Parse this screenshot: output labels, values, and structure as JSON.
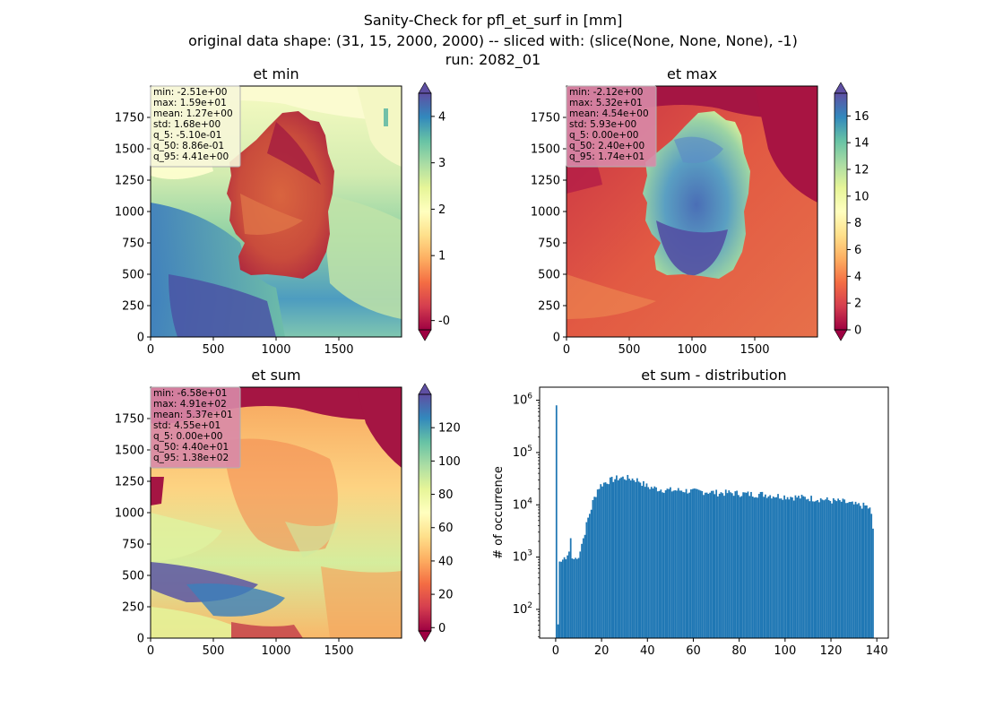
{
  "suptitle": {
    "line1": "Sanity-Check for pfl_et_surf in [mm]",
    "line2": "original data shape: (31, 15, 2000, 2000) -- sliced with: (slice(None, None, None), -1)",
    "line3": "run: 2082_01"
  },
  "panels": [
    {
      "title": "et min",
      "stats": [
        "min: -2.51e+00",
        "max: 1.59e+01",
        "mean: 1.27e+00",
        "std: 1.68e+00",
        "q_5: -5.10e-01",
        "q_50: 8.86e-01",
        "q_95: 4.41e+00"
      ],
      "stats_bg": "#f6f6d8",
      "xticks": [
        "0",
        "500",
        "1000",
        "1500"
      ],
      "yticks": [
        "0",
        "250",
        "500",
        "750",
        "1000",
        "1250",
        "1500",
        "1750"
      ],
      "colorbar": {
        "min": -0.6,
        "max": 4.5,
        "ticks": [
          "-0",
          "1",
          "2",
          "3",
          "4"
        ],
        "tick_values": [
          -0.4,
          1,
          2,
          3,
          4
        ]
      }
    },
    {
      "title": "et max",
      "stats": [
        "min: -2.12e+00",
        "max: 5.32e+01",
        "mean: 4.54e+00",
        "std: 5.93e+00",
        "q_5: 0.00e+00",
        "q_50: 2.40e+00",
        "q_95: 1.74e+01"
      ],
      "stats_bg": "#d889a8",
      "xticks": [
        "0",
        "500",
        "1000",
        "1500"
      ],
      "yticks": [
        "0",
        "250",
        "500",
        "750",
        "1000",
        "1250",
        "1500",
        "1750"
      ],
      "colorbar": {
        "min": 0,
        "max": 17.7,
        "ticks": [
          "0",
          "2",
          "4",
          "6",
          "8",
          "10",
          "12",
          "14",
          "16"
        ],
        "tick_values": [
          0,
          2,
          4,
          6,
          8,
          10,
          12,
          14,
          16
        ]
      }
    },
    {
      "title": "et sum",
      "stats": [
        "min: -6.58e+01",
        "max: 4.91e+02",
        "mean: 5.37e+01",
        "std: 4.55e+01",
        "q_5: 0.00e+00",
        "q_50: 4.40e+01",
        "q_95: 1.38e+02"
      ],
      "stats_bg": "#d889a8",
      "xticks": [
        "0",
        "500",
        "1000",
        "1500"
      ],
      "yticks": [
        "0",
        "250",
        "500",
        "750",
        "1000",
        "1250",
        "1500",
        "1750"
      ],
      "colorbar": {
        "min": -2,
        "max": 140,
        "ticks": [
          "0",
          "20",
          "40",
          "60",
          "80",
          "100",
          "120"
        ],
        "tick_values": [
          0,
          20,
          40,
          60,
          80,
          100,
          120
        ]
      }
    }
  ],
  "chart_data": {
    "type": "bar",
    "title": "et sum - distribution",
    "xlabel": "",
    "ylabel": "# of occurrence",
    "xlim": [
      -7,
      145
    ],
    "ylim_log10": [
      1.45,
      6.25
    ],
    "log_y": true,
    "x_ticks": [
      0,
      20,
      40,
      60,
      80,
      100,
      120,
      140
    ],
    "y_ticks_exp": [
      2,
      3,
      4,
      5,
      6
    ],
    "bar_color": "#1f77b4",
    "bin_width": 0.69,
    "profile_x": [
      0,
      0.35,
      0.7,
      1.05,
      1.4,
      1.75,
      2.1,
      2.8,
      3.5,
      4.2,
      4.9,
      5.6,
      6.3,
      7,
      8,
      9,
      10,
      11,
      12,
      13,
      14,
      15,
      16,
      17,
      18,
      19,
      20,
      22,
      24,
      26,
      28,
      30,
      32,
      34,
      36,
      38,
      40,
      45,
      50,
      55,
      60,
      65,
      70,
      75,
      80,
      85,
      90,
      95,
      100,
      105,
      110,
      115,
      120,
      125,
      130,
      135,
      137,
      138
    ],
    "profile_y": [
      800000,
      150,
      50,
      1300,
      800,
      1000,
      800,
      900,
      1000,
      900,
      1100,
      1300,
      2500,
      800,
      1000,
      900,
      1200,
      1800,
      2500,
      4000,
      6000,
      8000,
      12000,
      15000,
      20000,
      23000,
      25000,
      28000,
      30000,
      32000,
      33000,
      33000,
      32000,
      31000,
      29000,
      25000,
      22000,
      20000,
      19000,
      19000,
      18000,
      18000,
      17000,
      17000,
      16500,
      16000,
      16000,
      15000,
      14500,
      14000,
      13500,
      13000,
      12000,
      11500,
      10000,
      9500,
      8000,
      3500
    ]
  }
}
